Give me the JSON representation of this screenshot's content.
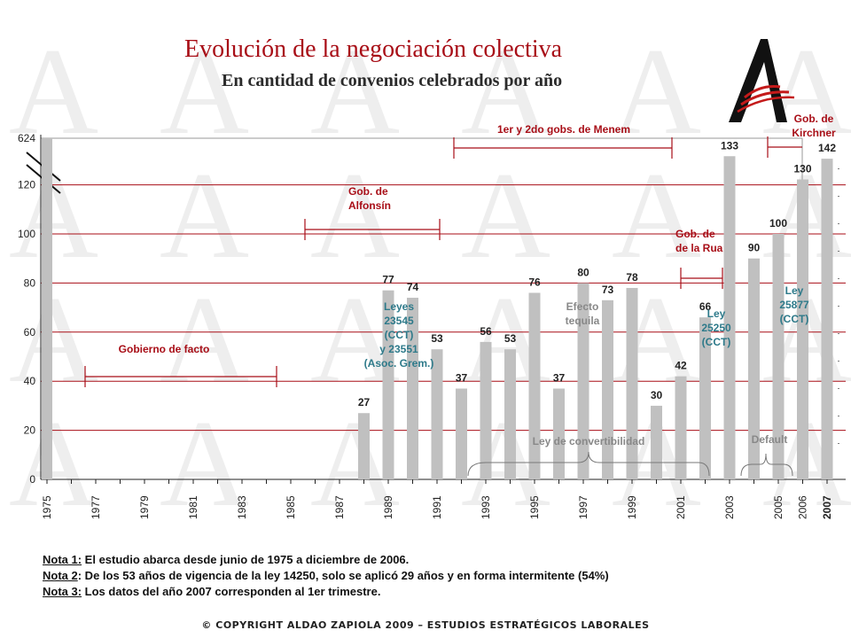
{
  "title": "Evolución de la negociación colectiva",
  "subtitle": "En cantidad de convenios celebrados por año",
  "chart_data": {
    "type": "bar",
    "categories": [
      "1975",
      "1976",
      "1977",
      "1978",
      "1979",
      "1980",
      "1981",
      "1982",
      "1983",
      "1984",
      "1985",
      "1986",
      "1987",
      "1988",
      "1989",
      "1990",
      "1991",
      "1992",
      "1993",
      "1994",
      "1995",
      "1996",
      "1997",
      "1998",
      "1999",
      "2000",
      "2001",
      "2002",
      "2003",
      "2004",
      "2005",
      "2006",
      "2007"
    ],
    "values": [
      624,
      null,
      null,
      null,
      null,
      null,
      null,
      null,
      null,
      null,
      null,
      null,
      null,
      27,
      77,
      74,
      53,
      37,
      56,
      53,
      76,
      37,
      80,
      73,
      78,
      30,
      42,
      66,
      133,
      90,
      100,
      130,
      142
    ],
    "x_tick_labels": [
      "1975",
      "1977",
      "1979",
      "1981",
      "1983",
      "1985",
      "1987",
      "1989",
      "1991",
      "1993",
      "1995",
      "1997",
      "1999",
      "2001",
      "2003",
      "2005",
      "2006",
      "2007"
    ],
    "y_tick_labels": [
      "0",
      "20",
      "40",
      "60",
      "80",
      "100",
      "120",
      "624"
    ],
    "axis_break": true,
    "bar_color": "#c0c0c0",
    "grid_color": "#a80e17",
    "annotations": [
      {
        "text": "Gobierno de facto",
        "color": "#a80e17"
      },
      {
        "text": "Gob. de Alfonsín",
        "color": "#a80e17"
      },
      {
        "text": "1er y 2do gobs. de Menem",
        "color": "#a80e17"
      },
      {
        "text": "Gob. de de la Rua",
        "color": "#a80e17"
      },
      {
        "text": "Gob. de Kirchner",
        "color": "#a80e17"
      },
      {
        "text": "Leyes 23545 (CCT) y 23551 (Asoc. Grem.)",
        "color": "#2e7a8a"
      },
      {
        "text": "Efecto tequila",
        "color": "#888888"
      },
      {
        "text": "Ley 25250 (CCT)",
        "color": "#2e7a8a"
      },
      {
        "text": "Ley 25877 (CCT)",
        "color": "#2e7a8a"
      },
      {
        "text": "Ley de convertibilidad",
        "color": "#888888"
      },
      {
        "text": "Default",
        "color": "#888888"
      }
    ]
  },
  "notes": [
    {
      "label": "Nota 1:",
      "text": " El estudio abarca desde junio de 1975 a diciembre  de 2006."
    },
    {
      "label": "Nota 2",
      "text": ": De los 53 años de vigencia de la ley 14250, solo se aplicó 29 años y en forma intermitente (54%)"
    },
    {
      "label": "Nota 3:",
      "text": " Los datos del año 2007 corresponden al 1er trimestre."
    }
  ],
  "copyright": "© COPYRIGHT ALDAO ZAPIOLA 2009 – ESTUDIOS ESTRATÉGICOS LABORALES"
}
